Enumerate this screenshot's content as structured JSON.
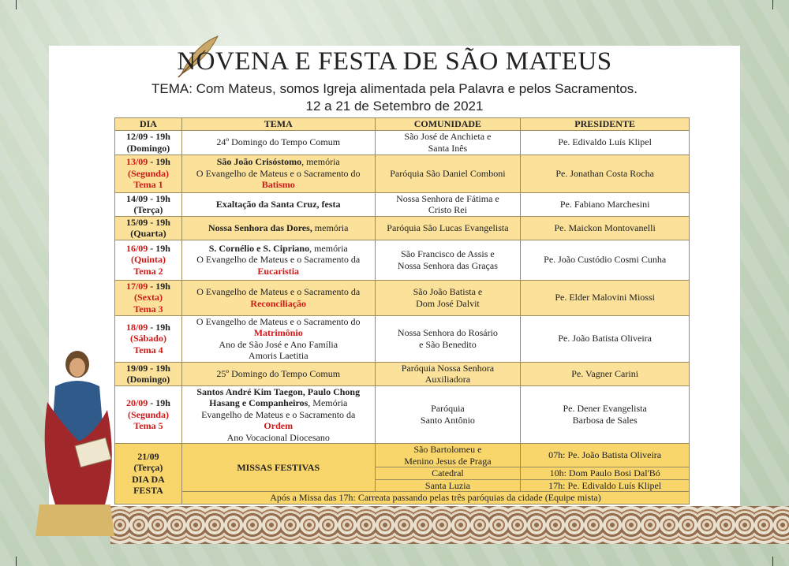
{
  "title": "NOVENA E FESTA DE SÃO MATEUS",
  "theme": "TEMA:  Com Mateus, somos Igreja alimentada pela Palavra e pelos Sacramentos.",
  "dates": "12 a 21 de Setembro de 2021",
  "colors": {
    "yellow": "#fbe19a",
    "festa": "#f9d66b",
    "red": "#d01818"
  },
  "headers": [
    "DIA",
    "TEMA",
    "COMUNIDADE",
    "PRESIDENTE"
  ],
  "rows": [
    {
      "bg": "w",
      "dia": [
        [
          [
            "12/09 - 19h",
            "b"
          ]
        ],
        [
          [
            "(Domingo)",
            "b"
          ]
        ]
      ],
      "tema": [
        [
          [
            "24º Domingo do Tempo Comum",
            ""
          ]
        ]
      ],
      "com": [
        [
          [
            "São José de Anchieta e",
            ""
          ]
        ],
        [
          [
            "Santa Inês",
            ""
          ]
        ]
      ],
      "pres": [
        [
          [
            "Pe. Edivaldo Luís Klipel",
            ""
          ]
        ]
      ]
    },
    {
      "bg": "y",
      "dia": [
        [
          [
            "13/09",
            "r"
          ],
          [
            " - 19h",
            "b"
          ]
        ],
        [
          [
            "(Segunda)",
            "r"
          ]
        ],
        [
          [
            "Tema 1",
            "r"
          ]
        ]
      ],
      "tema": [
        [
          [
            "São João Crisóstomo",
            "b"
          ],
          [
            ", memória",
            ""
          ]
        ],
        [
          [
            "O Evangelho de Mateus e o Sacramento do",
            ""
          ]
        ],
        [
          [
            "Batismo",
            "r"
          ]
        ]
      ],
      "com": [
        [
          [
            "Paróquia São Daniel Comboni",
            ""
          ]
        ]
      ],
      "pres": [
        [
          [
            "Pe. Jonathan Costa Rocha",
            ""
          ]
        ]
      ]
    },
    {
      "bg": "w",
      "dia": [
        [
          [
            "14/09 - 19h",
            "b"
          ]
        ],
        [
          [
            "(Terça)",
            "b"
          ]
        ]
      ],
      "tema": [
        [
          [
            "Exaltação da Santa Cruz, festa",
            "b"
          ]
        ]
      ],
      "com": [
        [
          [
            "Nossa Senhora de Fátima e",
            ""
          ]
        ],
        [
          [
            "Cristo Rei",
            ""
          ]
        ]
      ],
      "pres": [
        [
          [
            "Pe. Fabiano Marchesini",
            ""
          ]
        ]
      ]
    },
    {
      "bg": "y",
      "dia": [
        [
          [
            "15/09 - 19h",
            "b"
          ]
        ],
        [
          [
            "(Quarta)",
            "b"
          ]
        ]
      ],
      "tema": [
        [
          [
            "Nossa Senhora das Dores,",
            "b"
          ],
          [
            " memória",
            ""
          ]
        ]
      ],
      "com": [
        [
          [
            "Paróquia São Lucas Evangelista",
            ""
          ]
        ]
      ],
      "pres": [
        [
          [
            "Pe. Maickon Montovanelli",
            ""
          ]
        ]
      ]
    },
    {
      "bg": "w",
      "dia": [
        [
          [
            "16/09",
            "r"
          ],
          [
            " - 19h",
            "b"
          ]
        ],
        [
          [
            "(Quinta)",
            "r"
          ]
        ],
        [
          [
            "Tema 2",
            "r"
          ]
        ]
      ],
      "tema": [
        [
          [
            "S. Cornélio e S. Cipriano",
            "b"
          ],
          [
            ", memória",
            ""
          ]
        ],
        [
          [
            "O Evangelho de Mateus e o Sacramento da",
            ""
          ]
        ],
        [
          [
            "Eucaristia",
            "r"
          ]
        ]
      ],
      "com": [
        [
          [
            "São Francisco de Assis e",
            ""
          ]
        ],
        [
          [
            "Nossa Senhora das Graças",
            ""
          ]
        ]
      ],
      "pres": [
        [
          [
            "Pe. João Custódio Cosmi Cunha",
            ""
          ]
        ]
      ]
    },
    {
      "bg": "y",
      "dia": [
        [
          [
            "17/09",
            "r"
          ],
          [
            " - 19h",
            "b"
          ]
        ],
        [
          [
            "(Sexta)",
            "r"
          ]
        ],
        [
          [
            "Tema 3",
            "r"
          ]
        ]
      ],
      "tema": [
        [
          [
            "O Evangelho de Mateus e o Sacramento da",
            ""
          ]
        ],
        [
          [
            "Reconciliação",
            "r"
          ]
        ]
      ],
      "com": [
        [
          [
            "São João Batista e",
            ""
          ]
        ],
        [
          [
            "Dom José Dalvit",
            ""
          ]
        ]
      ],
      "pres": [
        [
          [
            "Pe. Elder Malovini Miossi",
            ""
          ]
        ]
      ]
    },
    {
      "bg": "w",
      "dia": [
        [
          [
            "18/09",
            "r"
          ],
          [
            " - 19h",
            "b"
          ]
        ],
        [
          [
            "(Sábado)",
            "r"
          ]
        ],
        [
          [
            "Tema 4",
            "r"
          ]
        ]
      ],
      "tema": [
        [
          [
            "O Evangelho de Mateus e o Sacramento do",
            ""
          ]
        ],
        [
          [
            "Matrimônio",
            "r"
          ]
        ],
        [
          [
            "Ano de São José e Ano Família",
            ""
          ]
        ],
        [
          [
            "Amoris Laetitia",
            ""
          ]
        ]
      ],
      "com": [
        [
          [
            "Nossa Senhora do Rosário",
            ""
          ]
        ],
        [
          [
            "e São Benedito",
            ""
          ]
        ]
      ],
      "pres": [
        [
          [
            "Pe. João Batista Oliveira",
            ""
          ]
        ]
      ]
    },
    {
      "bg": "y",
      "dia": [
        [
          [
            "19/09 - 19h",
            "b"
          ]
        ],
        [
          [
            "(Domingo)",
            "b"
          ]
        ]
      ],
      "tema": [
        [
          [
            "25º Domingo do Tempo Comum",
            ""
          ]
        ]
      ],
      "com": [
        [
          [
            "Paróquia Nossa Senhora",
            ""
          ]
        ],
        [
          [
            "Auxiliadora",
            ""
          ]
        ]
      ],
      "pres": [
        [
          [
            "Pe. Vagner Carini",
            ""
          ]
        ]
      ]
    },
    {
      "bg": "w",
      "dia": [
        [
          [
            "20/09",
            "r"
          ],
          [
            " - 19h",
            "b"
          ]
        ],
        [
          [
            "(Segunda)",
            "r"
          ]
        ],
        [
          [
            "Tema 5",
            "r"
          ]
        ]
      ],
      "tema": [
        [
          [
            "Santos André Kim Taegon, Paulo Chong",
            "b"
          ]
        ],
        [
          [
            "Hasang e Companheiros",
            "b"
          ],
          [
            ", Memória",
            ""
          ]
        ],
        [
          [
            "Evangelho de Mateus e o Sacramento da",
            ""
          ]
        ],
        [
          [
            "Ordem",
            "r"
          ]
        ],
        [
          [
            "Ano Vocacional Diocesano",
            ""
          ]
        ]
      ],
      "com": [
        [
          [
            "Paróquia",
            ""
          ]
        ],
        [
          [
            "Santo Antônio",
            ""
          ]
        ]
      ],
      "pres": [
        [
          [
            "Pe. Dener Evangelista",
            ""
          ]
        ],
        [
          [
            "Barbosa de Sales",
            ""
          ]
        ]
      ]
    }
  ],
  "festa": {
    "dia": [
      "21/09",
      "(Terça)",
      "DIA DA",
      "FESTA"
    ],
    "tema": "MISSAS FESTIVAS",
    "masses": [
      {
        "com": [
          "São Bartolomeu e",
          "Menino Jesus de Praga"
        ],
        "pres": "07h: Pe. João Batista Oliveira"
      },
      {
        "com": [
          "Catedral"
        ],
        "pres": "10h: Dom Paulo Bosi Dal'Bó"
      },
      {
        "com": [
          "Santa Luzia"
        ],
        "pres": "17h: Pe. Edivaldo Luís Klipel"
      }
    ],
    "note": "Após a Missa das 17h: Carreata passando pelas três paróquias da cidade (Equipe mista)"
  }
}
